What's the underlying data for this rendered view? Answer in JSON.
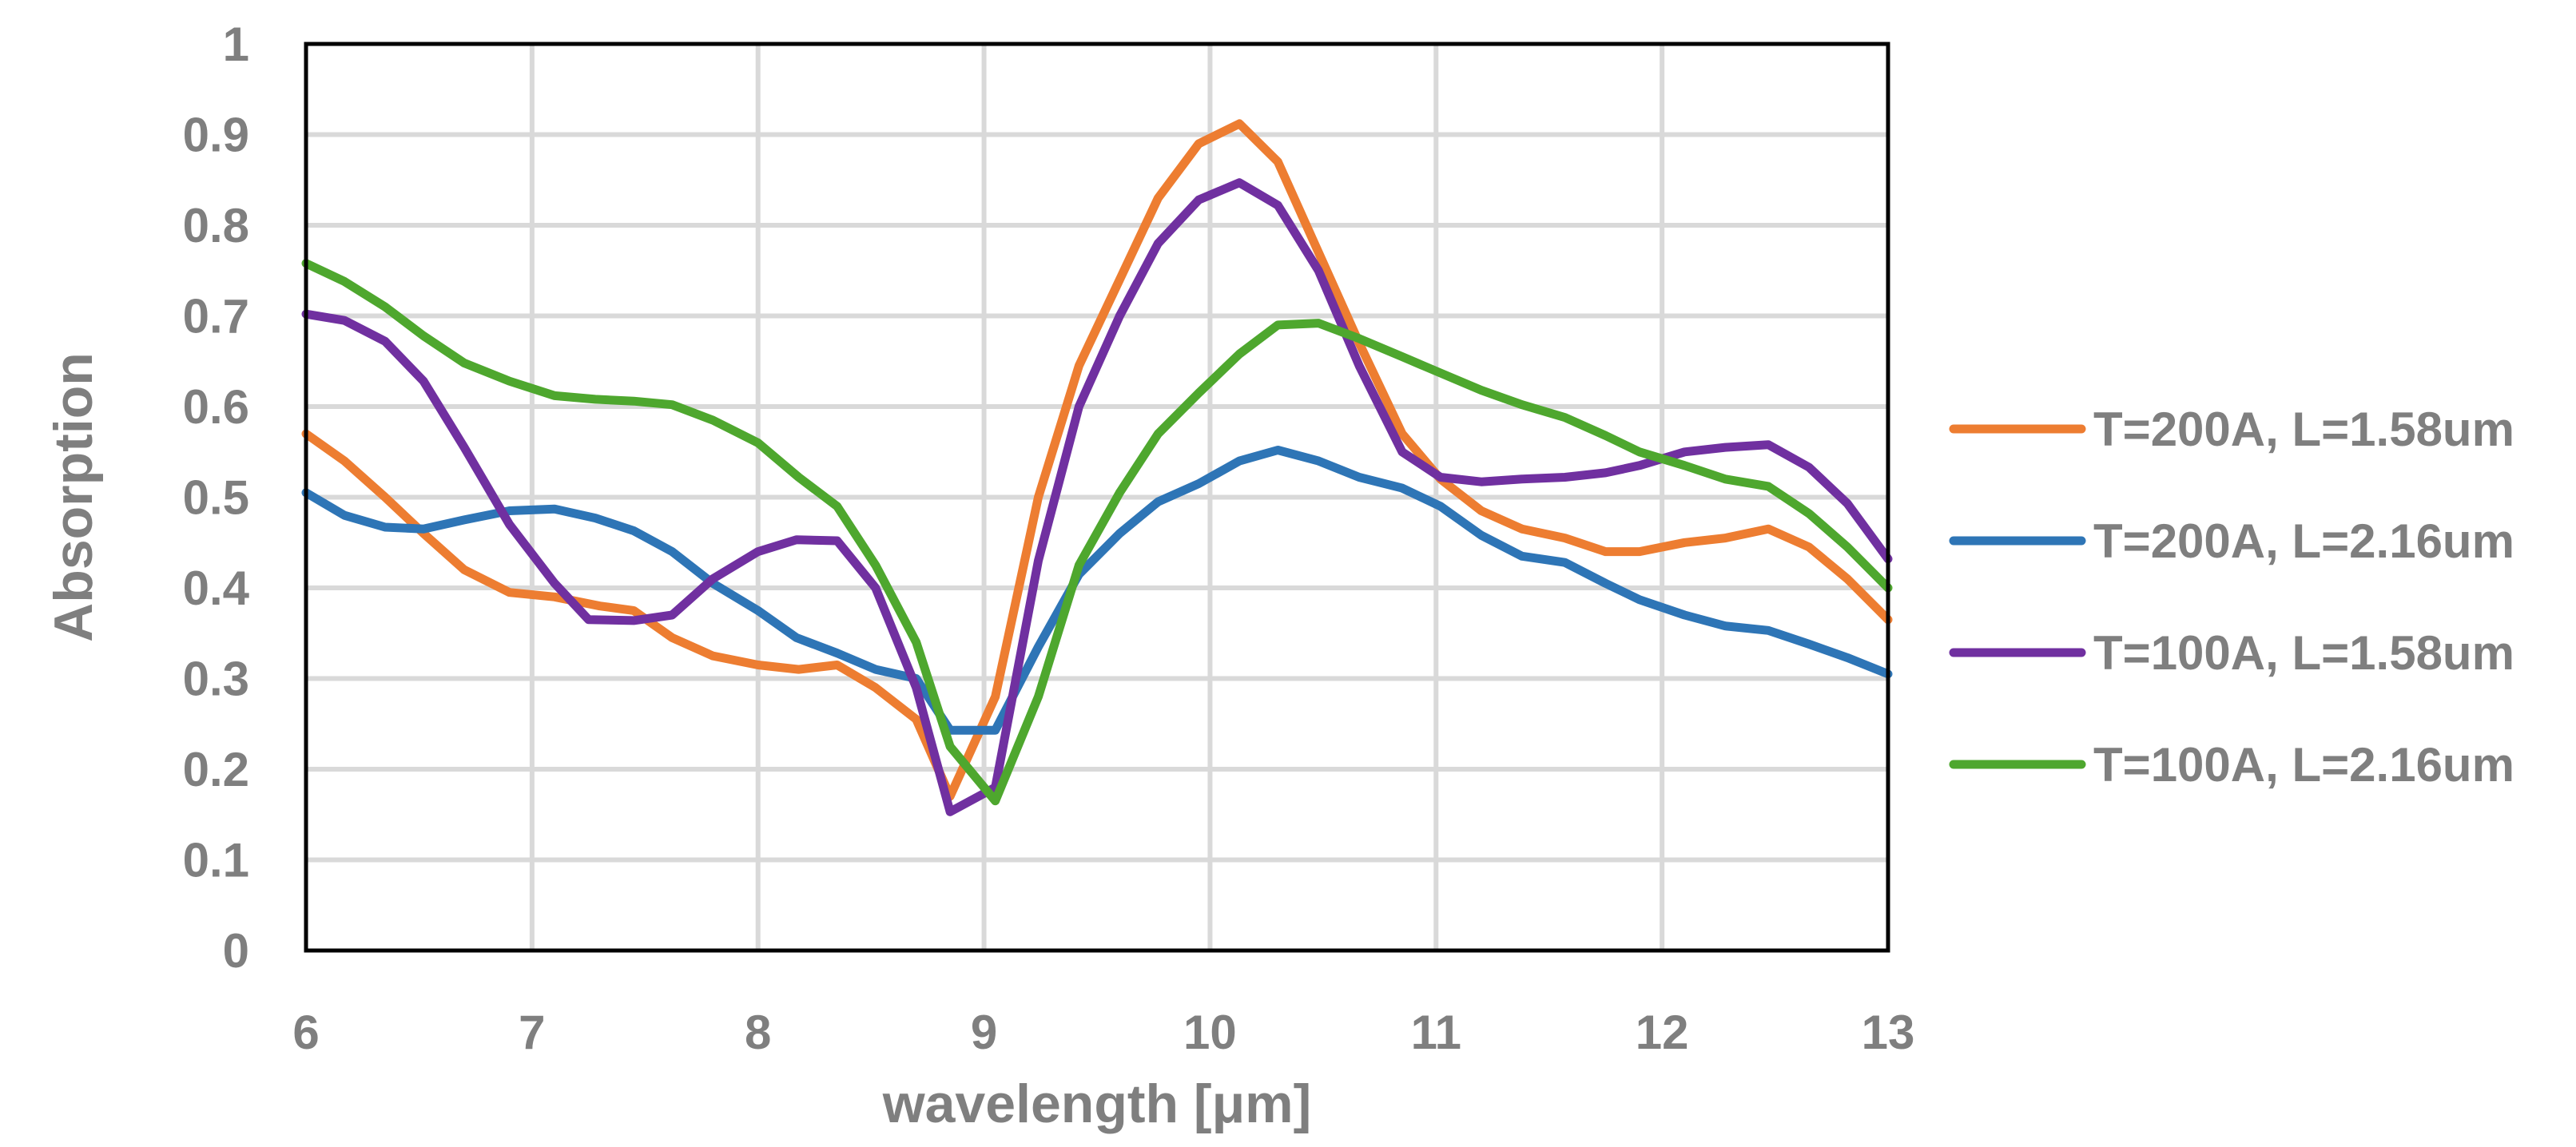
{
  "chart_data": {
    "type": "line",
    "title": "",
    "xlabel": "wavelength [μm]",
    "ylabel": "Absorption",
    "xlim": [
      6,
      13
    ],
    "ylim": [
      0,
      1
    ],
    "xticks": [
      6,
      7,
      8,
      9,
      10,
      11,
      12,
      13
    ],
    "yticks": [
      0,
      0.1,
      0.2,
      0.3,
      0.4,
      0.5,
      0.6,
      0.7,
      0.8,
      0.9,
      1
    ],
    "xtick_labels": [
      "6",
      "7",
      "8",
      "9",
      "10",
      "11",
      "12",
      "13"
    ],
    "ytick_labels": [
      "0",
      "0.1",
      "0.2",
      "0.3",
      "0.4",
      "0.5",
      "0.6",
      "0.7",
      "0.8",
      "0.9",
      "1"
    ],
    "grid": true,
    "legend_position": "right",
    "series": [
      {
        "name": "T=200A, L=1.58um",
        "color": "#ED7D31",
        "x": [
          6.0,
          6.17,
          6.35,
          6.52,
          6.7,
          6.9,
          7.1,
          7.3,
          7.45,
          7.62,
          7.8,
          8.0,
          8.18,
          8.35,
          8.52,
          8.7,
          8.85,
          9.05,
          9.24,
          9.42,
          9.6,
          9.77,
          9.95,
          10.13,
          10.3,
          10.48,
          10.66,
          10.85,
          11.02,
          11.2,
          11.38,
          11.57,
          11.75,
          11.9,
          12.1,
          12.28,
          12.47,
          12.65,
          12.82,
          13.0
        ],
        "y": [
          0.57,
          0.54,
          0.5,
          0.46,
          0.42,
          0.395,
          0.39,
          0.38,
          0.375,
          0.345,
          0.325,
          0.315,
          0.31,
          0.315,
          0.29,
          0.255,
          0.17,
          0.28,
          0.5,
          0.645,
          0.74,
          0.83,
          0.89,
          0.912,
          0.87,
          0.77,
          0.67,
          0.57,
          0.52,
          0.485,
          0.465,
          0.455,
          0.44,
          0.44,
          0.45,
          0.455,
          0.465,
          0.445,
          0.41,
          0.365
        ]
      },
      {
        "name": "T=200A, L=2.16um",
        "color": "#2E75B6",
        "x": [
          6.0,
          6.17,
          6.35,
          6.52,
          6.7,
          6.9,
          7.1,
          7.28,
          7.45,
          7.62,
          7.8,
          8.0,
          8.17,
          8.35,
          8.52,
          8.7,
          8.85,
          9.05,
          9.24,
          9.42,
          9.6,
          9.77,
          9.95,
          10.13,
          10.3,
          10.48,
          10.66,
          10.85,
          11.02,
          11.2,
          11.38,
          11.57,
          11.75,
          11.9,
          12.1,
          12.28,
          12.47,
          12.65,
          12.82,
          13.0
        ],
        "y": [
          0.505,
          0.48,
          0.467,
          0.465,
          0.475,
          0.485,
          0.487,
          0.477,
          0.463,
          0.44,
          0.405,
          0.375,
          0.345,
          0.328,
          0.31,
          0.3,
          0.243,
          0.243,
          0.335,
          0.415,
          0.46,
          0.495,
          0.515,
          0.54,
          0.552,
          0.54,
          0.522,
          0.51,
          0.49,
          0.458,
          0.435,
          0.428,
          0.405,
          0.387,
          0.37,
          0.358,
          0.353,
          0.338,
          0.323,
          0.305
        ]
      },
      {
        "name": "T=100A, L=1.58um",
        "color": "#7030A0",
        "x": [
          6.0,
          6.17,
          6.35,
          6.52,
          6.7,
          6.9,
          7.1,
          7.25,
          7.45,
          7.62,
          7.8,
          8.0,
          8.17,
          8.35,
          8.52,
          8.7,
          8.85,
          9.05,
          9.24,
          9.42,
          9.6,
          9.77,
          9.95,
          10.13,
          10.3,
          10.48,
          10.66,
          10.85,
          11.02,
          11.2,
          11.38,
          11.57,
          11.75,
          11.9,
          12.1,
          12.28,
          12.47,
          12.65,
          12.82,
          13.0
        ],
        "y": [
          0.702,
          0.695,
          0.672,
          0.628,
          0.555,
          0.47,
          0.405,
          0.365,
          0.364,
          0.37,
          0.41,
          0.44,
          0.453,
          0.452,
          0.4,
          0.29,
          0.153,
          0.18,
          0.43,
          0.6,
          0.7,
          0.78,
          0.828,
          0.847,
          0.822,
          0.75,
          0.645,
          0.55,
          0.522,
          0.517,
          0.52,
          0.522,
          0.527,
          0.535,
          0.55,
          0.555,
          0.558,
          0.533,
          0.493,
          0.432
        ]
      },
      {
        "name": "T=100A, L=2.16um",
        "color": "#4EA72E",
        "x": [
          6.0,
          6.17,
          6.35,
          6.52,
          6.7,
          6.9,
          7.1,
          7.28,
          7.45,
          7.62,
          7.8,
          8.0,
          8.18,
          8.35,
          8.52,
          8.7,
          8.85,
          9.05,
          9.24,
          9.42,
          9.6,
          9.77,
          9.95,
          10.13,
          10.3,
          10.48,
          10.66,
          10.85,
          11.02,
          11.2,
          11.38,
          11.57,
          11.75,
          11.9,
          12.1,
          12.28,
          12.47,
          12.65,
          12.82,
          13.0
        ],
        "y": [
          0.758,
          0.738,
          0.71,
          0.678,
          0.648,
          0.628,
          0.612,
          0.608,
          0.606,
          0.602,
          0.585,
          0.56,
          0.522,
          0.49,
          0.425,
          0.34,
          0.225,
          0.165,
          0.28,
          0.425,
          0.505,
          0.57,
          0.615,
          0.658,
          0.69,
          0.692,
          0.675,
          0.655,
          0.637,
          0.618,
          0.602,
          0.588,
          0.568,
          0.55,
          0.535,
          0.52,
          0.512,
          0.482,
          0.445,
          0.4
        ]
      }
    ]
  }
}
